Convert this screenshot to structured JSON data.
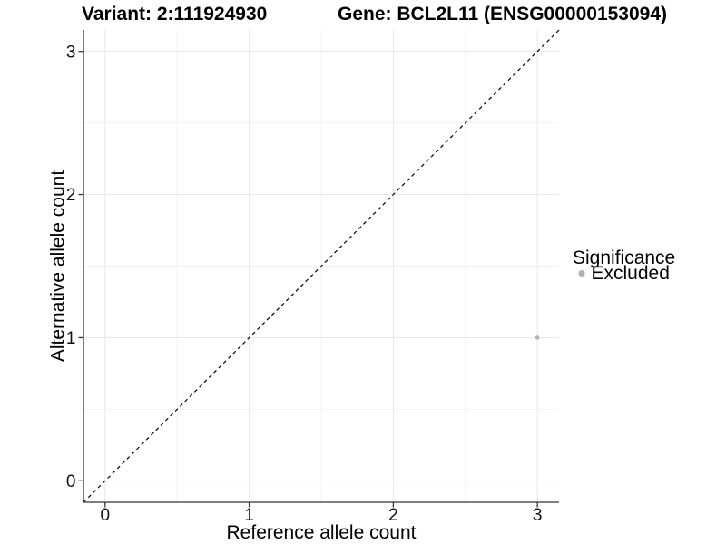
{
  "header": {
    "title_left": "Variant: 2:111924930",
    "title_right": "Gene: BCL2L11 (ENSG00000153094)"
  },
  "chart_data": {
    "type": "scatter",
    "title": "Variant: 2:111924930  /  Gene: BCL2L11 (ENSG00000153094)",
    "xlabel": "Reference allele count",
    "ylabel": "Alternative allele count",
    "xlim": [
      -0.15,
      3.15
    ],
    "ylim": [
      -0.15,
      3.15
    ],
    "xticks": [
      0,
      1,
      2,
      3
    ],
    "yticks": [
      0,
      1,
      2,
      3
    ],
    "minor_xticks": [
      0.5,
      1.5,
      2.5
    ],
    "minor_yticks": [
      0.5,
      1.5,
      2.5
    ],
    "grid": true,
    "reference_line": {
      "type": "identity",
      "slope": 1,
      "intercept": 0,
      "style": "dashed",
      "color": "#000000"
    },
    "series": [
      {
        "name": "Excluded",
        "color": "#b2b2b2",
        "points": [
          {
            "x": 3,
            "y": 1
          }
        ]
      }
    ],
    "legend": {
      "title": "Significance",
      "position": "right",
      "items": [
        {
          "label": "Excluded",
          "color": "#b2b2b2"
        }
      ]
    }
  },
  "colors": {
    "background": "#ffffff",
    "grid_major": "#e7e7e7",
    "grid_minor": "#f2f2f2",
    "axis": "#333333",
    "point": "#b2b2b2",
    "text": "#000000"
  }
}
